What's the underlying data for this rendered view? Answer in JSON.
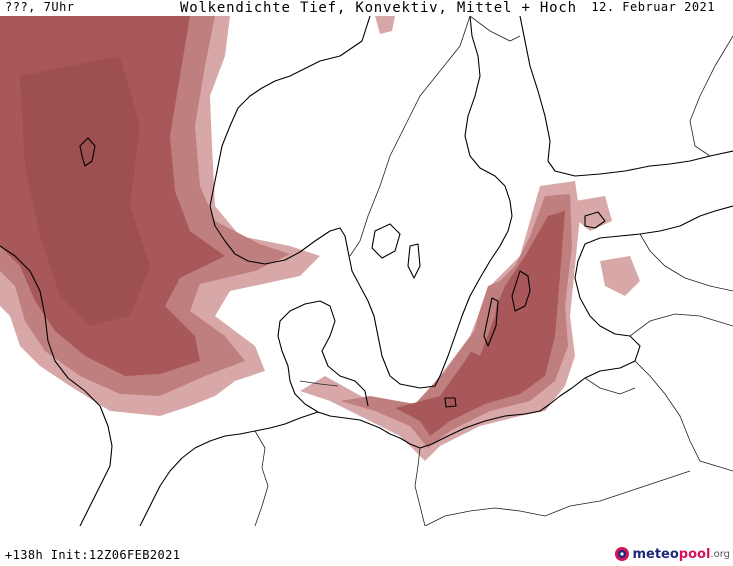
{
  "header": {
    "run_time": "???, 7Uhr",
    "title": "Wolkendichte  Tief, Konvektiv, Mittel + Hoch",
    "date": "12. Februar 2021"
  },
  "footer": {
    "forecast_info": "+138h Init:12Z06FEB2021"
  },
  "logo": {
    "part1": "meteo",
    "part2": "pool",
    "part3": ".org",
    "icon": "meteopool-logo-icon"
  },
  "colors": {
    "cloud_light": "#d8a8a8",
    "cloud_mid": "#c07f7f",
    "cloud_dense": "#a85858",
    "coastline": "#000000",
    "border": "#222222"
  }
}
